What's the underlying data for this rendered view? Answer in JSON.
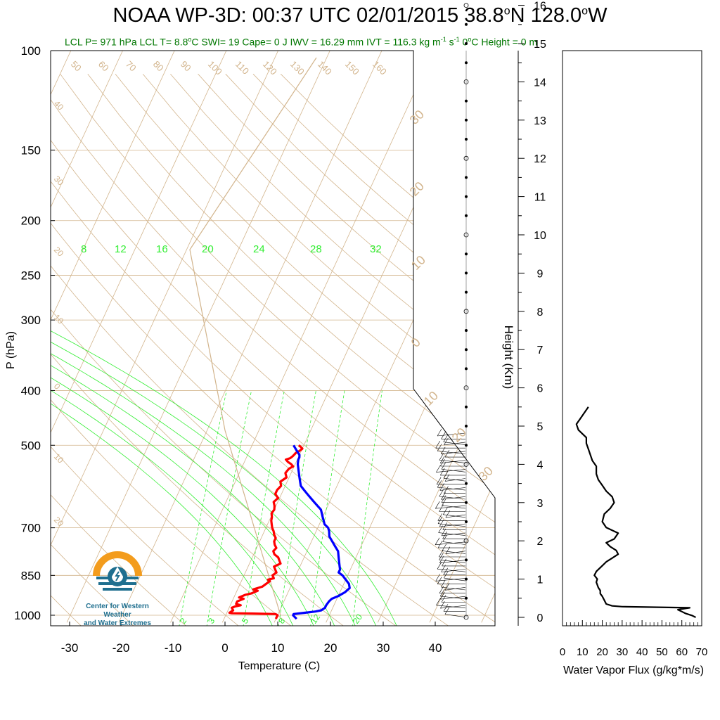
{
  "title": {
    "prefix": "NOAA WP-3D: 00:37 UTC 02/01/2015  38.8",
    "lat_unit": "N 128.0",
    "lon_unit": "W",
    "degree": "o"
  },
  "subtitle": {
    "part1": "LCL P= 971 hPa  LCL T= 8.8",
    "deg": "o",
    "part2": "C  SWI= 19  Cape= 0 J  IWV = 16.29 mm  IVT = 116.3 kg m",
    "sup1": "-1",
    "part3": " s",
    "sup2": "-1",
    "part4": "  0",
    "deg2": "o",
    "part5": "C Height = 0 m"
  },
  "logo": {
    "line1": "Center for Western Weather",
    "line2": "and Water Extremes"
  },
  "colors": {
    "temperature": "#ff0000",
    "dewpoint": "#0000ff",
    "adiabat": "#d2b48c",
    "mixing": "#33ee33",
    "title_green": "#007700"
  },
  "chart_data": [
    {
      "type": "line",
      "name": "skew-t",
      "xlabel": "Temperature (C)",
      "ylabel": "P (hPa)",
      "pressure_ticks": [
        100,
        150,
        200,
        250,
        300,
        400,
        500,
        700,
        850,
        1000
      ],
      "temperature_ticks": [
        -30,
        -20,
        -10,
        0,
        10,
        20,
        30,
        40
      ],
      "xlim": [
        -34,
        52
      ],
      "ylim": [
        1030,
        100
      ],
      "isotherm_labels": [
        "50",
        "60",
        "70",
        "80",
        "90",
        "100",
        "110",
        "120",
        "130",
        "140",
        "150",
        "160"
      ],
      "left_labels": [
        "40",
        "30",
        "20",
        "10",
        "0",
        "10",
        "20"
      ],
      "mixing_ratio_labels_top": [
        "8",
        "12",
        "16",
        "20",
        "24",
        "28",
        "32"
      ],
      "mixing_ratio_labels_bottom": [
        "2",
        "3",
        "5",
        "8",
        "12",
        "20"
      ],
      "right_skew_labels": [
        "30",
        "20",
        "10",
        "0",
        "10",
        "20",
        "30"
      ],
      "series": [
        {
          "key": "temperature",
          "points": [
            [
              10,
              1015
            ],
            [
              10,
              1000
            ],
            [
              9.5,
              995
            ],
            [
              5,
              993
            ],
            [
              1,
              992
            ],
            [
              0.5,
              990
            ],
            [
              1,
              980
            ],
            [
              0.5,
              970
            ],
            [
              1,
              965
            ],
            [
              2,
              960
            ],
            [
              1,
              955
            ],
            [
              1,
              945
            ],
            [
              2,
              935
            ],
            [
              1,
              930
            ],
            [
              2,
              920
            ],
            [
              3,
              915
            ],
            [
              4,
              905
            ],
            [
              3,
              900
            ],
            [
              4.5,
              890
            ],
            [
              5,
              880
            ],
            [
              5.5,
              870
            ],
            [
              5,
              865
            ],
            [
              6,
              860
            ],
            [
              5.5,
              850
            ],
            [
              6,
              840
            ],
            [
              5.5,
              830
            ],
            [
              5,
              820
            ],
            [
              6,
              810
            ],
            [
              5.5,
              800
            ],
            [
              5,
              790
            ],
            [
              4,
              780
            ],
            [
              3.5,
              770
            ],
            [
              3.8,
              760
            ],
            [
              3.2,
              750
            ],
            [
              2.8,
              740
            ],
            [
              2.8,
              730
            ],
            [
              2.2,
              720
            ],
            [
              1.8,
              710
            ],
            [
              1.2,
              700
            ],
            [
              0.8,
              690
            ],
            [
              0.4,
              680
            ],
            [
              0.2,
              670
            ],
            [
              -0.2,
              660
            ],
            [
              0,
              650
            ],
            [
              -0.3,
              640
            ],
            [
              -0.8,
              630
            ],
            [
              -0.3,
              620
            ],
            [
              -1.2,
              610
            ],
            [
              -1.2,
              600
            ],
            [
              -0.8,
              590
            ],
            [
              -1.3,
              580
            ],
            [
              -0.5,
              570
            ],
            [
              -1.1,
              560
            ],
            [
              -0.8,
              550
            ],
            [
              -0.2,
              545
            ],
            [
              -0.8,
              540
            ],
            [
              -1.6,
              535
            ],
            [
              -2.2,
              530
            ],
            [
              -1.5,
              527
            ],
            [
              -1.2,
              523
            ],
            [
              -1,
              519
            ],
            [
              -0.9,
              516
            ],
            [
              -0.5,
              513
            ],
            [
              -0.2,
              510
            ],
            [
              0,
              507
            ],
            [
              -0.5,
              503
            ],
            [
              -1,
              500
            ]
          ]
        },
        {
          "key": "dewpoint",
          "points": [
            [
              14,
              1015
            ],
            [
              13,
              1000
            ],
            [
              13,
              995
            ],
            [
              15,
              990
            ],
            [
              17,
              985
            ],
            [
              18,
              980
            ],
            [
              18.5,
              970
            ],
            [
              18.5,
              960
            ],
            [
              18.7,
              945
            ],
            [
              19,
              935
            ],
            [
              20,
              925
            ],
            [
              21,
              910
            ],
            [
              21.5,
              895
            ],
            [
              21,
              880
            ],
            [
              20,
              865
            ],
            [
              19,
              850
            ],
            [
              18,
              840
            ],
            [
              18,
              830
            ],
            [
              17.5,
              815
            ],
            [
              17,
              800
            ],
            [
              16.5,
              785
            ],
            [
              16,
              770
            ],
            [
              15,
              755
            ],
            [
              14,
              740
            ],
            [
              13,
              725
            ],
            [
              12.5,
              710
            ],
            [
              12,
              700
            ],
            [
              11,
              690
            ],
            [
              10.5,
              680
            ],
            [
              10,
              670
            ],
            [
              9.5,
              660
            ],
            [
              9,
              650
            ],
            [
              8,
              640
            ],
            [
              7,
              630
            ],
            [
              6,
              620
            ],
            [
              5,
              610
            ],
            [
              4,
              600
            ],
            [
              3,
              590
            ],
            [
              2.5,
              580
            ],
            [
              2,
              570
            ],
            [
              1.5,
              560
            ],
            [
              1,
              550
            ],
            [
              0.5,
              540
            ],
            [
              0.2,
              530
            ],
            [
              0.2,
              525
            ],
            [
              0,
              520
            ],
            [
              -0.5,
              515
            ],
            [
              -1,
              510
            ],
            [
              -1.5,
              505
            ],
            [
              -2,
              500
            ]
          ]
        }
      ]
    },
    {
      "type": "line",
      "name": "water-vapor-flux",
      "xlabel": "Water Vapor Flux (g/kg*m/s)",
      "ylabel": "Height (Km)",
      "xlim": [
        0,
        70
      ],
      "ylim": [
        -0.3,
        16.5
      ],
      "x_ticks": [
        0,
        10,
        20,
        30,
        40,
        50,
        60,
        70
      ],
      "y_ticks": [
        0,
        1,
        2,
        3,
        4,
        5,
        6,
        7,
        8,
        9,
        10,
        11,
        12,
        13,
        14,
        15,
        16
      ],
      "points": [
        [
          67,
          0
        ],
        [
          65,
          0.05
        ],
        [
          62,
          0.1
        ],
        [
          60,
          0.15
        ],
        [
          58,
          0.2
        ],
        [
          64,
          0.25
        ],
        [
          30,
          0.28
        ],
        [
          25,
          0.3
        ],
        [
          22,
          0.35
        ],
        [
          21,
          0.45
        ],
        [
          20,
          0.55
        ],
        [
          19,
          0.62
        ],
        [
          19,
          0.7
        ],
        [
          18,
          0.78
        ],
        [
          17.5,
          0.85
        ],
        [
          17,
          0.92
        ],
        [
          17.5,
          1.0
        ],
        [
          16,
          1.1
        ],
        [
          17,
          1.2
        ],
        [
          20,
          1.35
        ],
        [
          22,
          1.45
        ],
        [
          25,
          1.55
        ],
        [
          28,
          1.65
        ],
        [
          27,
          1.75
        ],
        [
          24,
          1.85
        ],
        [
          22,
          1.95
        ],
        [
          26,
          2.05
        ],
        [
          28,
          2.2
        ],
        [
          22,
          2.35
        ],
        [
          20,
          2.5
        ],
        [
          21,
          2.7
        ],
        [
          24,
          2.85
        ],
        [
          26,
          3.0
        ],
        [
          25,
          3.15
        ],
        [
          22,
          3.3
        ],
        [
          20,
          3.45
        ],
        [
          18,
          3.6
        ],
        [
          17,
          3.75
        ],
        [
          17,
          3.95
        ],
        [
          15,
          4.1
        ],
        [
          14,
          4.25
        ],
        [
          13,
          4.4
        ],
        [
          12,
          4.55
        ],
        [
          12,
          4.7
        ],
        [
          10,
          4.8
        ],
        [
          8,
          4.9
        ],
        [
          7,
          5.05
        ],
        [
          9,
          5.2
        ],
        [
          11,
          5.35
        ],
        [
          13,
          5.5
        ]
      ]
    }
  ]
}
